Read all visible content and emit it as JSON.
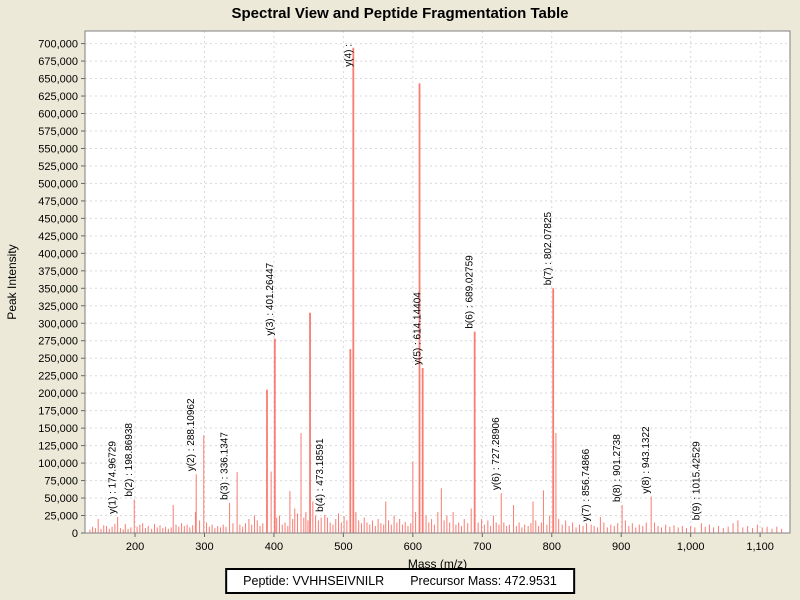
{
  "title": "Spectral View and Peptide Fragmentation Table",
  "footer": {
    "peptide": "Peptide: VVHHSEIVNILR",
    "precursor_mass": "Precursor Mass: 472.9531"
  },
  "chart_data": {
    "type": "bar",
    "title": "Spectral View and Peptide Fragmentation Table",
    "xlabel": "Mass (m/z)",
    "ylabel": "Peak Intensity",
    "xlim": [
      128,
      1143
    ],
    "ylim": [
      0,
      718000
    ],
    "grid": true,
    "legend": "none",
    "bar_color": "#f97b72",
    "grid_color": "#d9d9d9",
    "axis_color": "#808080",
    "plot_bg": "#ffffff",
    "outer_bg": "#ece9d8",
    "x_ticks": [
      200,
      300,
      400,
      500,
      600,
      700,
      800,
      900,
      1000,
      1100
    ],
    "y_ticks": [
      0,
      25000,
      50000,
      75000,
      100000,
      125000,
      150000,
      175000,
      200000,
      225000,
      250000,
      275000,
      300000,
      325000,
      350000,
      375000,
      400000,
      425000,
      450000,
      475000,
      500000,
      525000,
      550000,
      575000,
      600000,
      625000,
      650000,
      675000,
      700000
    ],
    "labeled_peaks": [
      {
        "label": "y(1) : 174.96729",
        "mz": 174.97,
        "intensity": 23000
      },
      {
        "label": "b(2) : 198.86938",
        "mz": 198.87,
        "intensity": 48000
      },
      {
        "label": "y(2) : 288.10962",
        "mz": 288.11,
        "intensity": 84000
      },
      {
        "label": "b(3) : 336.1347",
        "mz": 336.13,
        "intensity": 43000
      },
      {
        "label": "y(3) : 401.26447",
        "mz": 401.26,
        "intensity": 278000
      },
      {
        "label": "b(4) : 473.18591",
        "mz": 473.19,
        "intensity": 26000
      },
      {
        "label": "y(4) :",
        "mz": 514.3,
        "intensity": 694000
      },
      {
        "label": "y(5) : 614.14404",
        "mz": 614.14,
        "intensity": 236000
      },
      {
        "label": "b(6) : 689.02759",
        "mz": 689.03,
        "intensity": 288000
      },
      {
        "label": "y(6) : 727.28906",
        "mz": 727.29,
        "intensity": 57000
      },
      {
        "label": "b(7) : 802.07825",
        "mz": 802.08,
        "intensity": 350000
      },
      {
        "label": "y(7) : 856.74866",
        "mz": 856.75,
        "intensity": 12000
      },
      {
        "label": "b(8) : 901.2738",
        "mz": 901.27,
        "intensity": 40000
      },
      {
        "label": "y(8) : 943.1322",
        "mz": 943.13,
        "intensity": 52000
      },
      {
        "label": "b(9) : 1015.42529",
        "mz": 1015.43,
        "intensity": 14000
      }
    ],
    "unlabeled_peaks": [
      [
        135,
        5000
      ],
      [
        139,
        9000
      ],
      [
        143,
        7000
      ],
      [
        147,
        20000
      ],
      [
        151,
        6000
      ],
      [
        155,
        11000
      ],
      [
        159,
        10000
      ],
      [
        163,
        6000
      ],
      [
        167,
        9000
      ],
      [
        171,
        13000
      ],
      [
        179,
        7000
      ],
      [
        183,
        5000
      ],
      [
        186,
        13000
      ],
      [
        190,
        6000
      ],
      [
        194,
        8000
      ],
      [
        203,
        9000
      ],
      [
        207,
        12000
      ],
      [
        211,
        14000
      ],
      [
        215,
        7000
      ],
      [
        219,
        10000
      ],
      [
        224,
        6000
      ],
      [
        228,
        13000
      ],
      [
        232,
        8000
      ],
      [
        236,
        11000
      ],
      [
        240,
        7000
      ],
      [
        244,
        9000
      ],
      [
        248,
        6000
      ],
      [
        252,
        8000
      ],
      [
        255,
        40000
      ],
      [
        259,
        12000
      ],
      [
        263,
        9000
      ],
      [
        267,
        14000
      ],
      [
        271,
        10000
      ],
      [
        275,
        12000
      ],
      [
        279,
        8000
      ],
      [
        283,
        11000
      ],
      [
        287,
        30000
      ],
      [
        293,
        18000
      ],
      [
        299,
        140000
      ],
      [
        303,
        15000
      ],
      [
        307,
        9000
      ],
      [
        311,
        12000
      ],
      [
        315,
        7000
      ],
      [
        319,
        10000
      ],
      [
        323,
        8000
      ],
      [
        327,
        12000
      ],
      [
        331,
        9000
      ],
      [
        341,
        14000
      ],
      [
        347,
        87000
      ],
      [
        351,
        12000
      ],
      [
        355,
        9000
      ],
      [
        359,
        14000
      ],
      [
        364,
        20000
      ],
      [
        368,
        12000
      ],
      [
        372,
        25000
      ],
      [
        376,
        18000
      ],
      [
        380,
        10000
      ],
      [
        384,
        14000
      ],
      [
        390,
        205000
      ],
      [
        396,
        88000
      ],
      [
        404,
        22000
      ],
      [
        408,
        25000
      ],
      [
        412,
        12000
      ],
      [
        416,
        15000
      ],
      [
        420,
        10000
      ],
      [
        423,
        60000
      ],
      [
        427,
        20000
      ],
      [
        430,
        35000
      ],
      [
        434,
        28000
      ],
      [
        439,
        143000
      ],
      [
        443,
        22000
      ],
      [
        446,
        30000
      ],
      [
        449,
        18000
      ],
      [
        452,
        315000
      ],
      [
        456,
        45000
      ],
      [
        460,
        25000
      ],
      [
        464,
        18000
      ],
      [
        468,
        22000
      ],
      [
        477,
        22000
      ],
      [
        481,
        15000
      ],
      [
        485,
        12000
      ],
      [
        489,
        20000
      ],
      [
        493,
        28000
      ],
      [
        497,
        15000
      ],
      [
        501,
        24000
      ],
      [
        505,
        18000
      ],
      [
        510,
        263000
      ],
      [
        518,
        30000
      ],
      [
        522,
        18000
      ],
      [
        526,
        14000
      ],
      [
        530,
        22000
      ],
      [
        534,
        15000
      ],
      [
        538,
        12000
      ],
      [
        542,
        18000
      ],
      [
        546,
        10000
      ],
      [
        550,
        20000
      ],
      [
        554,
        14000
      ],
      [
        558,
        12000
      ],
      [
        561,
        45000
      ],
      [
        565,
        18000
      ],
      [
        569,
        12000
      ],
      [
        573,
        25000
      ],
      [
        577,
        15000
      ],
      [
        581,
        20000
      ],
      [
        585,
        12000
      ],
      [
        589,
        16000
      ],
      [
        593,
        10000
      ],
      [
        597,
        14000
      ],
      [
        600,
        102000
      ],
      [
        604,
        30000
      ],
      [
        609.6,
        643000
      ],
      [
        619,
        25000
      ],
      [
        623,
        15000
      ],
      [
        627,
        20000
      ],
      [
        631,
        12000
      ],
      [
        636,
        30000
      ],
      [
        641,
        64000
      ],
      [
        645,
        18000
      ],
      [
        649,
        25000
      ],
      [
        653,
        15000
      ],
      [
        658,
        30000
      ],
      [
        662,
        12000
      ],
      [
        666,
        15000
      ],
      [
        670,
        10000
      ],
      [
        674,
        20000
      ],
      [
        679,
        14000
      ],
      [
        684,
        35000
      ],
      [
        694,
        15000
      ],
      [
        699,
        20000
      ],
      [
        703,
        12000
      ],
      [
        708,
        18000
      ],
      [
        712,
        10000
      ],
      [
        716,
        25000
      ],
      [
        720,
        15000
      ],
      [
        724,
        12000
      ],
      [
        731,
        15000
      ],
      [
        735,
        10000
      ],
      [
        739,
        12000
      ],
      [
        745,
        40000
      ],
      [
        749,
        10000
      ],
      [
        753,
        15000
      ],
      [
        757,
        8000
      ],
      [
        761,
        12000
      ],
      [
        766,
        10000
      ],
      [
        770,
        14000
      ],
      [
        773,
        45000
      ],
      [
        777,
        18000
      ],
      [
        781,
        10000
      ],
      [
        785,
        15000
      ],
      [
        788,
        61000
      ],
      [
        793,
        12000
      ],
      [
        797,
        25000
      ],
      [
        806,
        143000
      ],
      [
        810,
        20000
      ],
      [
        815,
        12000
      ],
      [
        820,
        18000
      ],
      [
        825,
        10000
      ],
      [
        830,
        15000
      ],
      [
        835,
        8000
      ],
      [
        840,
        12000
      ],
      [
        845,
        10000
      ],
      [
        850,
        14000
      ],
      [
        861,
        10000
      ],
      [
        866,
        8000
      ],
      [
        870,
        23000
      ],
      [
        875,
        15000
      ],
      [
        880,
        8000
      ],
      [
        885,
        12000
      ],
      [
        890,
        10000
      ],
      [
        895,
        14000
      ],
      [
        906,
        18000
      ],
      [
        911,
        10000
      ],
      [
        916,
        14000
      ],
      [
        921,
        8000
      ],
      [
        926,
        12000
      ],
      [
        931,
        10000
      ],
      [
        936,
        15000
      ],
      [
        948,
        15000
      ],
      [
        953,
        10000
      ],
      [
        958,
        8000
      ],
      [
        964,
        12000
      ],
      [
        970,
        9000
      ],
      [
        976,
        11000
      ],
      [
        982,
        8000
      ],
      [
        988,
        10000
      ],
      [
        994,
        7000
      ],
      [
        1000,
        10000
      ],
      [
        1006,
        8000
      ],
      [
        1021,
        9000
      ],
      [
        1027,
        12000
      ],
      [
        1033,
        8000
      ],
      [
        1040,
        10000
      ],
      [
        1047,
        7000
      ],
      [
        1054,
        9000
      ],
      [
        1061,
        14000
      ],
      [
        1068,
        18000
      ],
      [
        1075,
        8000
      ],
      [
        1082,
        10000
      ],
      [
        1089,
        7000
      ],
      [
        1096,
        12000
      ],
      [
        1103,
        8000
      ],
      [
        1110,
        9000
      ],
      [
        1117,
        6000
      ],
      [
        1124,
        9000
      ],
      [
        1131,
        6000
      ]
    ]
  }
}
